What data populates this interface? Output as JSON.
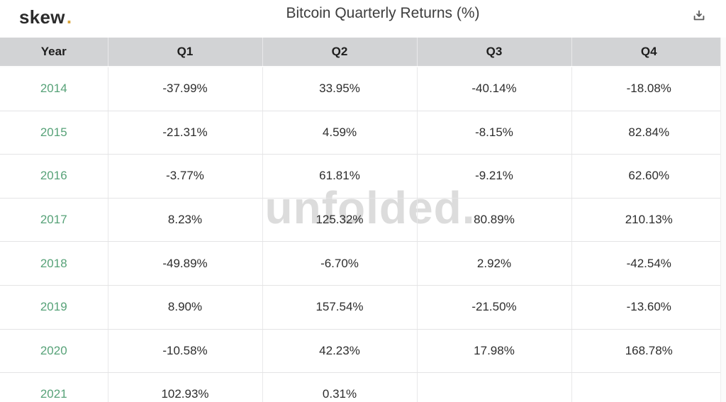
{
  "topbar": {
    "logo_text": "skew",
    "logo_dot": ".",
    "title": "Bitcoin Quarterly Returns (%)"
  },
  "watermark": "unfolded.",
  "table": {
    "columns": [
      "Year",
      "Q1",
      "Q2",
      "Q3",
      "Q4"
    ],
    "rows": [
      [
        "2014",
        "-37.99%",
        "33.95%",
        "-40.14%",
        "-18.08%"
      ],
      [
        "2015",
        "-21.31%",
        "4.59%",
        "-8.15%",
        "82.84%"
      ],
      [
        "2016",
        "-3.77%",
        "61.81%",
        "-9.21%",
        "62.60%"
      ],
      [
        "2017",
        "8.23%",
        "125.32%",
        "80.89%",
        "210.13%"
      ],
      [
        "2018",
        "-49.89%",
        "-6.70%",
        "2.92%",
        "-42.54%"
      ],
      [
        "2019",
        "8.90%",
        "157.54%",
        "-21.50%",
        "-13.60%"
      ],
      [
        "2020",
        "-10.58%",
        "42.23%",
        "17.98%",
        "168.78%"
      ],
      [
        "2021",
        "102.93%",
        "0.31%",
        "",
        ""
      ]
    ]
  },
  "colors": {
    "year_green": "#57a278",
    "logo_dot_gold": "#d9a43b",
    "header_bg": "#d2d3d5",
    "watermark_gray": "#dcdcdc",
    "cell_text": "#2d2d2d"
  },
  "chart_data": {
    "type": "table",
    "title": "Bitcoin Quarterly Returns (%)",
    "columns": [
      "Year",
      "Q1",
      "Q2",
      "Q3",
      "Q4"
    ],
    "rows": [
      {
        "year": 2014,
        "q1": -37.99,
        "q2": 33.95,
        "q3": -40.14,
        "q4": -18.08
      },
      {
        "year": 2015,
        "q1": -21.31,
        "q2": 4.59,
        "q3": -8.15,
        "q4": 82.84
      },
      {
        "year": 2016,
        "q1": -3.77,
        "q2": 61.81,
        "q3": -9.21,
        "q4": 62.6
      },
      {
        "year": 2017,
        "q1": 8.23,
        "q2": 125.32,
        "q3": 80.89,
        "q4": 210.13
      },
      {
        "year": 2018,
        "q1": -49.89,
        "q2": -6.7,
        "q3": 2.92,
        "q4": -42.54
      },
      {
        "year": 2019,
        "q1": 8.9,
        "q2": 157.54,
        "q3": -21.5,
        "q4": -13.6
      },
      {
        "year": 2020,
        "q1": -10.58,
        "q2": 42.23,
        "q3": 17.98,
        "q4": 168.78
      },
      {
        "year": 2021,
        "q1": 102.93,
        "q2": 0.31,
        "q3": null,
        "q4": null
      }
    ],
    "units": "percent",
    "source_logo": "skew",
    "watermark": "unfolded."
  }
}
